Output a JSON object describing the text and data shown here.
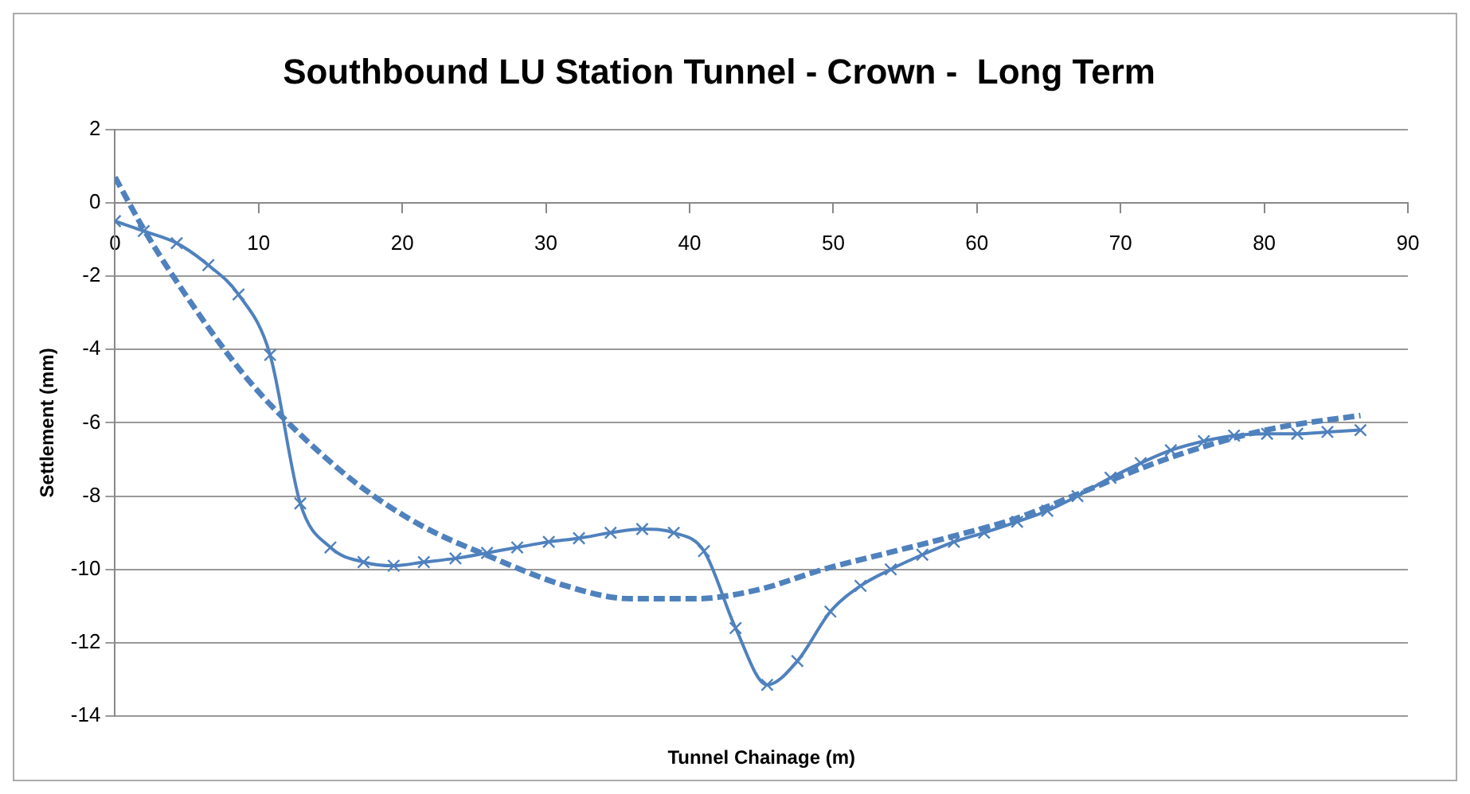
{
  "chart_data": {
    "type": "line",
    "title": "Southbound LU Station Tunnel - Crown -  Long Term",
    "xlabel": "Tunnel Chainage (m)",
    "ylabel": "Settlement (mm)",
    "xlim": [
      0,
      90
    ],
    "xticks": [
      0,
      10,
      20,
      30,
      40,
      50,
      60,
      70,
      80,
      90
    ],
    "ylim": [
      -14,
      2
    ],
    "yticks": [
      -14,
      -12,
      -10,
      -8,
      -6,
      -4,
      -2,
      0,
      2
    ],
    "grid": "y",
    "legend": false,
    "series": [
      {
        "color": "#4f81bd",
        "marker": "cross",
        "line_style": "solid",
        "x": [
          0,
          2.0,
          4.3,
          6.5,
          8.6,
          10.8,
          12.9,
          15.0,
          17.3,
          19.4,
          21.5,
          23.7,
          25.9,
          28.0,
          30.2,
          32.3,
          34.5,
          36.7,
          38.9,
          41.0,
          43.2,
          45.4,
          47.5,
          49.8,
          51.9,
          54.0,
          56.2,
          58.4,
          60.5,
          62.8,
          64.9,
          67.0,
          69.3,
          71.4,
          73.5,
          75.8,
          77.9,
          80.2,
          82.3,
          84.4,
          86.7
        ],
        "values": [
          -0.5,
          -0.77,
          -1.1,
          -1.7,
          -2.5,
          -4.15,
          -8.2,
          -9.4,
          -9.8,
          -9.9,
          -9.8,
          -9.7,
          -9.55,
          -9.4,
          -9.25,
          -9.15,
          -9.0,
          -8.9,
          -9.0,
          -9.5,
          -11.6,
          -13.15,
          -12.5,
          -11.15,
          -10.45,
          -10.0,
          -9.6,
          -9.25,
          -9.0,
          -8.7,
          -8.4,
          -8.0,
          -7.5,
          -7.1,
          -6.75,
          -6.5,
          -6.35,
          -6.3,
          -6.3,
          -6.25,
          -6.2
        ]
      },
      {
        "color": "#4f81bd",
        "marker": "none",
        "line_style": "dashed",
        "x": [
          0,
          2.2,
          5.6,
          9.0,
          11.8,
          16.8,
          21.3,
          25.8,
          31.4,
          35.9,
          40.4,
          44.8,
          49.3,
          53.8,
          58.3,
          62.8,
          67.3,
          71.7,
          76.2,
          80.7,
          86.7
        ],
        "values": [
          0.7,
          -0.85,
          -2.9,
          -4.7,
          -5.9,
          -7.65,
          -8.8,
          -9.6,
          -10.45,
          -10.8,
          -10.8,
          -10.55,
          -10.0,
          -9.55,
          -9.1,
          -8.6,
          -7.9,
          -7.2,
          -6.6,
          -6.15,
          -5.8
        ]
      }
    ]
  }
}
